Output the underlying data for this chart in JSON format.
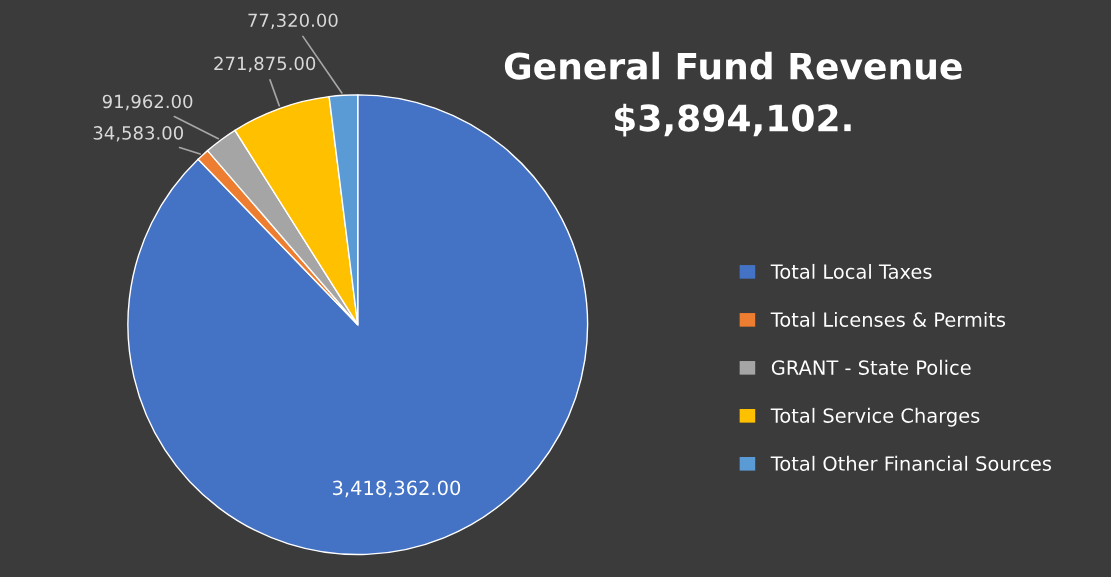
{
  "chart_data": {
    "type": "pie",
    "title": "General Fund Revenue",
    "subtitle": "$3,894,102.",
    "categories": [
      "Total Local Taxes",
      "Total Licenses & Permits",
      "GRANT - State Police",
      "Total Service Charges",
      "Total Other Financial Sources"
    ],
    "values": [
      3418362,
      34583,
      91962,
      271875,
      77320
    ],
    "colors": [
      "#4472c4",
      "#ed7d31",
      "#a5a5a5",
      "#ffc000",
      "#5b9bd5"
    ],
    "value_labels": [
      "3,418,362.00",
      "34,583.00",
      "91,962.00",
      "271,875.00",
      "77,320.00"
    ],
    "legend": "right"
  }
}
